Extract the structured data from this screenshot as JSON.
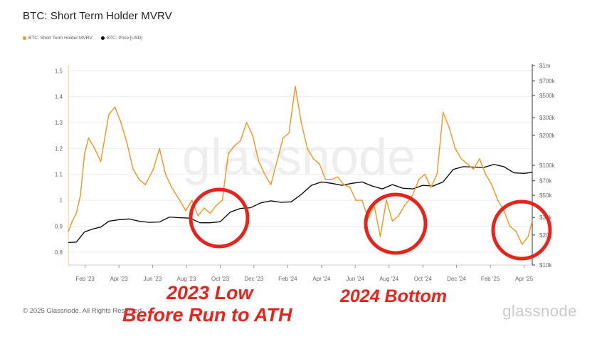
{
  "title": "BTC: Short Term Holder MVRV",
  "legend": [
    {
      "label": "BTC: Short Term Holder MVRV",
      "color": "#f7931a"
    },
    {
      "label": "BTC: Price [USD]",
      "color": "#000000"
    }
  ],
  "footer": "© 2025 Glassnode. All Rights Reserved.",
  "brand": "glassnode",
  "watermark": "glassnode",
  "annotations": {
    "a1": "2023 Low",
    "a2": "Before Run to ATH",
    "a3": "2024 Bottom"
  },
  "colors": {
    "mvrv": "#f7931a",
    "price": "#000000",
    "circle": "#e8231c"
  },
  "chart_data": {
    "type": "line",
    "title": "BTC: Short Term Holder MVRV",
    "x_labels": [
      "Feb '23",
      "Apr '23",
      "Jun '23",
      "Aug '23",
      "Oct '23",
      "Dec '23",
      "Feb '24",
      "Apr '24",
      "Jun '24",
      "Aug '24",
      "Oct '24",
      "Dec '24",
      "Feb '25",
      "Apr '25"
    ],
    "x_range": [
      2023.0,
      2025.29
    ],
    "y_left": {
      "ticks": [
        0.8,
        0.9,
        1,
        1.1,
        1.2,
        1.3,
        1.4,
        1.5
      ],
      "range": [
        0.75,
        1.52
      ]
    },
    "y_right": {
      "ticks": [
        "$10k",
        "$20k",
        "$30k",
        "$50k",
        "$70k",
        "$100k",
        "$200k",
        "$300k",
        "$500k",
        "$700k",
        "$1m"
      ],
      "values": [
        10000,
        20000,
        30000,
        50000,
        70000,
        100000,
        200000,
        300000,
        500000,
        700000,
        1000000
      ],
      "scale": "log"
    },
    "series": [
      {
        "name": "BTC: Short Term Holder MVRV",
        "axis": "left",
        "x": [
          2023.0,
          2023.02,
          2023.04,
          2023.06,
          2023.08,
          2023.1,
          2023.13,
          2023.16,
          2023.2,
          2023.23,
          2023.26,
          2023.29,
          2023.32,
          2023.35,
          2023.38,
          2023.42,
          2023.45,
          2023.48,
          2023.51,
          2023.55,
          2023.58,
          2023.61,
          2023.64,
          2023.67,
          2023.7,
          2023.73,
          2023.76,
          2023.79,
          2023.82,
          2023.85,
          2023.88,
          2023.91,
          2023.94,
          2023.97,
          2024.0,
          2024.03,
          2024.06,
          2024.09,
          2024.12,
          2024.15,
          2024.18,
          2024.21,
          2024.24,
          2024.27,
          2024.3,
          2024.33,
          2024.36,
          2024.39,
          2024.42,
          2024.45,
          2024.48,
          2024.51,
          2024.54,
          2024.57,
          2024.6,
          2024.63,
          2024.66,
          2024.7,
          2024.73,
          2024.76,
          2024.79,
          2024.82,
          2024.85,
          2024.88,
          2024.91,
          2024.94,
          2024.97,
          2025.0,
          2025.03,
          2025.06,
          2025.09,
          2025.12,
          2025.15,
          2025.18,
          2025.21,
          2025.24,
          2025.27,
          2025.29
        ],
        "values": [
          0.88,
          0.92,
          0.95,
          1.02,
          1.18,
          1.24,
          1.2,
          1.15,
          1.33,
          1.36,
          1.3,
          1.22,
          1.12,
          1.08,
          1.06,
          1.12,
          1.2,
          1.1,
          1.05,
          1.0,
          0.96,
          1.0,
          0.94,
          0.97,
          0.95,
          0.98,
          1.0,
          1.18,
          1.21,
          1.23,
          1.3,
          1.25,
          1.15,
          1.1,
          1.06,
          1.15,
          1.24,
          1.26,
          1.44,
          1.3,
          1.2,
          1.16,
          1.14,
          1.08,
          1.08,
          1.09,
          1.06,
          1.05,
          1.0,
          1.0,
          0.93,
          0.98,
          0.86,
          1.0,
          0.92,
          0.94,
          0.98,
          1.02,
          1.08,
          1.1,
          1.05,
          1.1,
          1.34,
          1.28,
          1.2,
          1.16,
          1.14,
          1.12,
          1.16,
          1.1,
          1.06,
          1.0,
          0.96,
          0.9,
          0.88,
          0.83,
          0.86,
          0.92
        ]
      },
      {
        "name": "BTC: Price [USD]",
        "axis": "right",
        "x": [
          2023.0,
          2023.04,
          2023.08,
          2023.12,
          2023.16,
          2023.2,
          2023.25,
          2023.3,
          2023.35,
          2023.4,
          2023.45,
          2023.5,
          2023.55,
          2023.6,
          2023.65,
          2023.7,
          2023.75,
          2023.8,
          2023.85,
          2023.9,
          2023.95,
          2024.0,
          2024.05,
          2024.1,
          2024.15,
          2024.2,
          2024.25,
          2024.3,
          2024.35,
          2024.4,
          2024.45,
          2024.5,
          2024.55,
          2024.6,
          2024.65,
          2024.7,
          2024.75,
          2024.8,
          2024.85,
          2024.9,
          2024.95,
          2025.0,
          2025.05,
          2025.1,
          2025.15,
          2025.2,
          2025.25,
          2025.29
        ],
        "values": [
          16800,
          17000,
          21500,
          23000,
          24000,
          27500,
          28500,
          29000,
          27500,
          26800,
          27000,
          30300,
          29800,
          29500,
          26500,
          26500,
          27200,
          34000,
          37000,
          37500,
          42000,
          44000,
          42500,
          43000,
          51000,
          63000,
          68000,
          66000,
          63000,
          66000,
          68000,
          62000,
          58000,
          64000,
          59000,
          58000,
          63000,
          62000,
          68000,
          91000,
          97000,
          96000,
          95000,
          102000,
          97000,
          84000,
          83000,
          85000
        ]
      }
    ],
    "annotations": [
      "2023 Low",
      "Before Run to ATH",
      "2024 Bottom"
    ]
  }
}
